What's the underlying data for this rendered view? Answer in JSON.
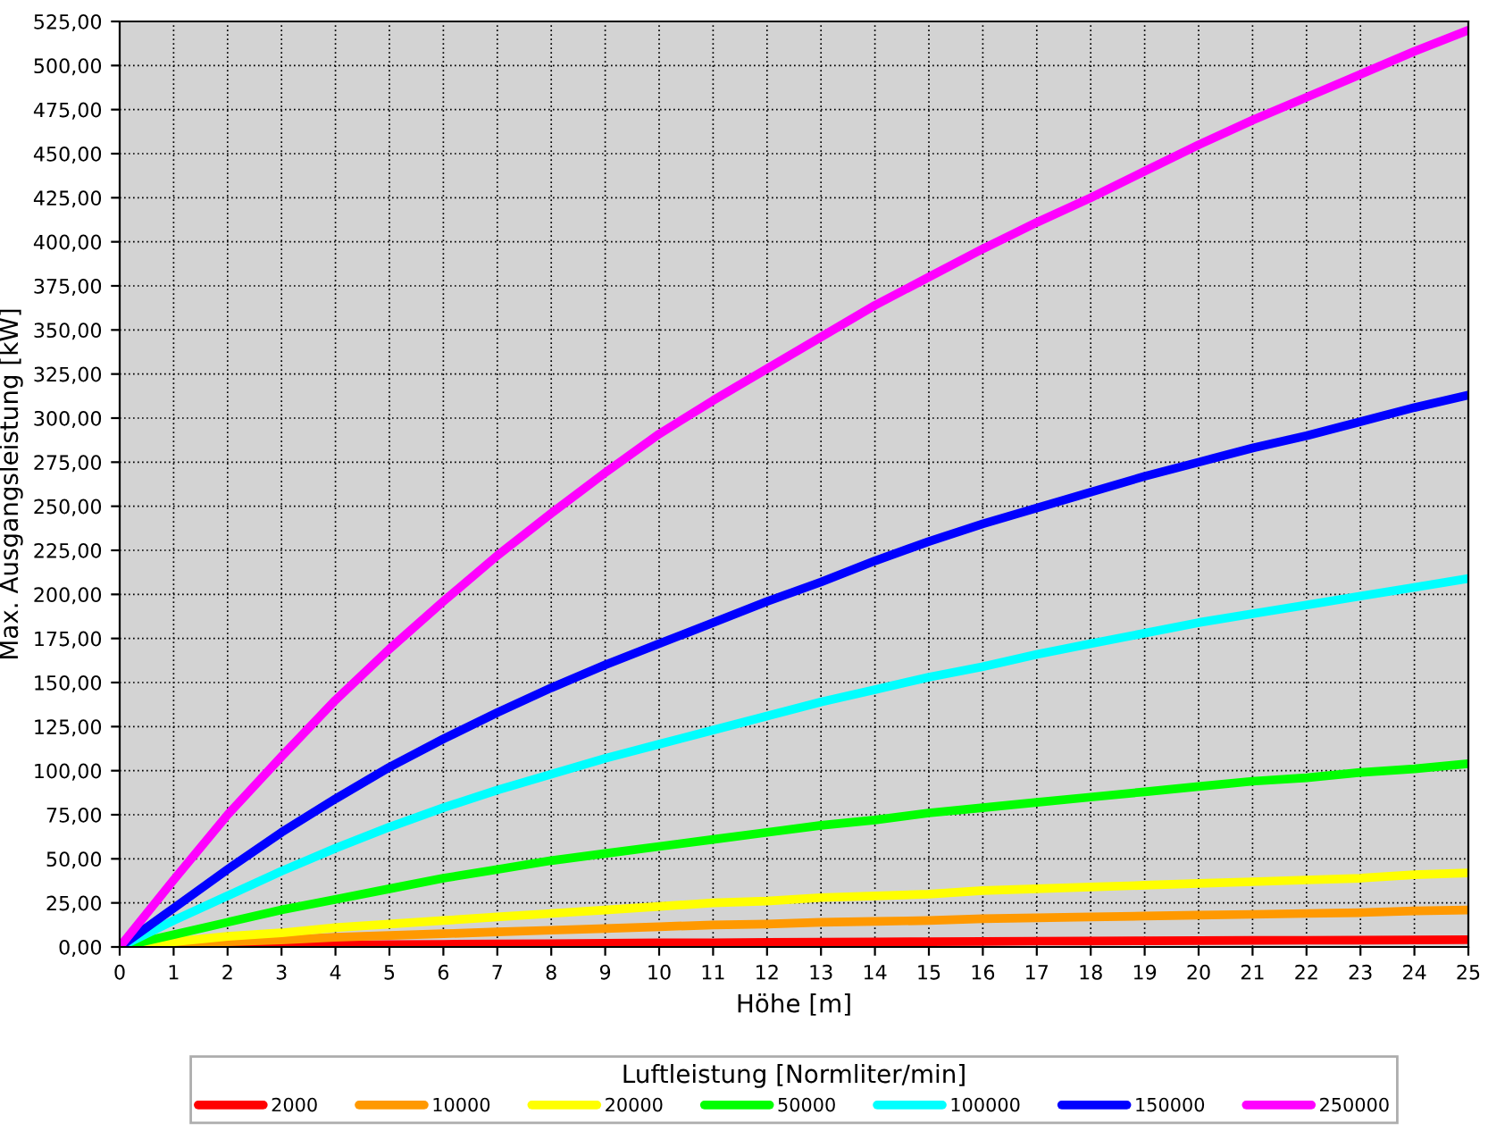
{
  "chart_data": {
    "type": "line",
    "xlabel": "Höhe [m]",
    "ylabel": "Max. Ausgangsleistung [kW]",
    "legend_title": "Luftleistung [Normliter/min]",
    "legend": "bottom",
    "grid": true,
    "marker": "none",
    "line_style": "solid",
    "x": [
      0,
      1,
      2,
      3,
      4,
      5,
      6,
      7,
      8,
      9,
      10,
      11,
      12,
      13,
      14,
      15,
      16,
      17,
      18,
      19,
      20,
      21,
      22,
      23,
      24,
      25
    ],
    "xlim": [
      0,
      25
    ],
    "xticks": [
      0,
      1,
      2,
      3,
      4,
      5,
      6,
      7,
      8,
      9,
      10,
      11,
      12,
      13,
      14,
      15,
      16,
      17,
      18,
      19,
      20,
      21,
      22,
      23,
      24,
      25
    ],
    "ylim": [
      0,
      525
    ],
    "yticks": [
      {
        "value": 0,
        "label": "0,00"
      },
      {
        "value": 25,
        "label": "25,00"
      },
      {
        "value": 50,
        "label": "50,00"
      },
      {
        "value": 75,
        "label": "75,00"
      },
      {
        "value": 100,
        "label": "100,00"
      },
      {
        "value": 125,
        "label": "125,00"
      },
      {
        "value": 150,
        "label": "150,00"
      },
      {
        "value": 175,
        "label": "175,00"
      },
      {
        "value": 200,
        "label": "200,00"
      },
      {
        "value": 225,
        "label": "225,00"
      },
      {
        "value": 250,
        "label": "250,00"
      },
      {
        "value": 275,
        "label": "275,00"
      },
      {
        "value": 300,
        "label": "300,00"
      },
      {
        "value": 325,
        "label": "325,00"
      },
      {
        "value": 350,
        "label": "350,00"
      },
      {
        "value": 375,
        "label": "375,00"
      },
      {
        "value": 400,
        "label": "400,00"
      },
      {
        "value": 425,
        "label": "425,00"
      },
      {
        "value": 450,
        "label": "450,00"
      },
      {
        "value": 475,
        "label": "475,00"
      },
      {
        "value": 500,
        "label": "500,00"
      },
      {
        "value": 525,
        "label": "525,00"
      }
    ],
    "series": [
      {
        "name": "2000",
        "color": "#ff0000",
        "values": [
          0,
          0.3,
          0.6,
          0.9,
          1.1,
          1.3,
          1.5,
          1.7,
          1.9,
          2.1,
          2.3,
          2.4,
          2.6,
          2.7,
          2.9,
          3.0,
          3.1,
          3.3,
          3.4,
          3.5,
          3.6,
          3.7,
          3.8,
          3.9,
          4.0,
          4.1
        ]
      },
      {
        "name": "10000",
        "color": "#ff9900",
        "values": [
          0,
          1.5,
          3,
          4,
          5.5,
          6.5,
          7.5,
          8.5,
          9.5,
          10.5,
          11.5,
          12.5,
          13,
          14,
          14.5,
          15,
          16,
          16.5,
          17,
          17.5,
          18,
          18.5,
          19,
          19.5,
          20.5,
          21
        ]
      },
      {
        "name": "20000",
        "color": "#ffff00",
        "values": [
          0,
          3,
          6,
          8,
          11,
          13,
          15,
          17,
          19,
          21,
          23,
          25,
          26,
          28,
          29,
          30,
          32,
          33,
          34,
          35,
          36,
          37,
          38,
          39,
          41,
          42
        ]
      },
      {
        "name": "50000",
        "color": "#00ff00",
        "values": [
          0,
          7,
          14,
          21,
          27,
          33,
          39,
          44,
          49,
          53,
          57,
          61,
          65,
          69,
          72,
          76,
          79,
          82,
          85,
          88,
          91,
          94,
          96,
          99,
          101,
          104
        ]
      },
      {
        "name": "100000",
        "color": "#00ffff",
        "values": [
          0,
          15,
          29,
          43,
          56,
          68,
          79,
          89,
          98,
          107,
          115,
          123,
          131,
          139,
          146,
          153,
          159,
          166,
          172,
          178,
          184,
          189,
          194,
          199,
          204,
          209
        ]
      },
      {
        "name": "150000",
        "color": "#0000ff",
        "values": [
          0,
          22,
          44,
          65,
          84,
          102,
          118,
          133,
          147,
          160,
          172,
          184,
          196,
          207,
          219,
          230,
          240,
          249,
          258,
          267,
          275,
          283,
          290,
          298,
          306,
          313
        ]
      },
      {
        "name": "250000",
        "color": "#ff00ff",
        "values": [
          0,
          38,
          75,
          108,
          140,
          169,
          196,
          222,
          246,
          269,
          291,
          310,
          328,
          346,
          364,
          380,
          396,
          411,
          425,
          440,
          455,
          469,
          482,
          495,
          508,
          520
        ]
      }
    ]
  }
}
